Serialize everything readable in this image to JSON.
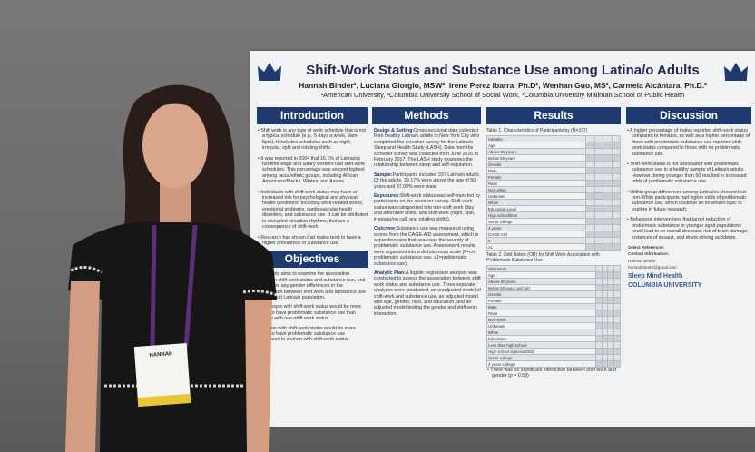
{
  "poster": {
    "title": "Shift-Work Status and Substance Use among Latina/o Adults",
    "authors": "Hannah Binder¹, Luciana Giorgio, MSW², Irene Perez Ibarra, Ph.D², Wenhan Guo, MS³, Carmela Alcántara, Ph.D.²",
    "affiliations": "¹American University, ²Columbia University School of Social Work, ³Columbia University Mailman School of Public Health"
  },
  "introduction": {
    "heading": "Introduction",
    "bullets": [
      "Shift work is any type of work schedule that is not a typical schedule (e.g., 5 days a week, 9am-5pm). It includes schedules such as night, irregular, split and rotating shifts.",
      "It was reported in 2004 that 16.1% of Latina/os full-time wage and salary workers had shift-work schedules. This percentage was second highest among racial/ethnic groups, including African Americans/Blacks, Whites, and Asians.",
      "Individuals with shift-work status may have an increased risk for psychological and physical health conditions, including work-related stress, emotional problems, cardiovascular health disorders, and substance use. It can be attributed to disrupted circadian rhythms, that are a consequence of shift-work.",
      "Research has shown that males tend to have a higher prevalence of substance use."
    ]
  },
  "objectives": {
    "heading": "Objectives",
    "paragraphs": [
      "The study aims to examine the association between shift-work status and substance use, and to explore any gender differences in the association between shift work and substance use in the adult Latina/o population.",
      "H1. People with shift-work status would be more likely to have problematic substance use than people with non-shift work status.",
      "H2. Men with shift-work status would be more likely to have problematic substance use compared to women with shift-work status."
    ]
  },
  "methods": {
    "heading": "Methods",
    "items": [
      {
        "label": "Design & Setting:",
        "text": "Cross-sectional data collected from healthy Latina/o adults in New York City who completed the screener survey for the Latina/o Sleep and Health Study (LASH). Data from the screener survey was collected from June 2016 to February 2017. The LASH study examines the relationship between sleep and self-regulation."
      },
      {
        "label": "Sample:",
        "text": "Participants included 337 Latina/o adults. Of the adults, 39.17% were above the age of 50 years and 37.09% were male."
      },
      {
        "label": "Exposures:",
        "text": "Shift-work status was self-reported by participants on the screener survey. Shift-work status was categorized into non-shift work (day and afternoon shifts) and shift-work (night, split, irregular/on call, and rotating shifts)."
      },
      {
        "label": "Outcome:",
        "text": "Substance use was measured using scores from the CAGE-AID assessment, which is a questionnaire that assesses the severity of problematic substance use. Assessment results were organized into a dichotomous scale (0=no problematic substance use, ≥1=problematic substance use)."
      },
      {
        "label": "Analytic Plan:",
        "text": "A logistic regression analysis was conducted to assess the association between shift work status and substance use. Three separate analyses were conducted, an unadjusted model of shift-work and substance use, an adjusted model with age, gender, race, and education, and an adjusted model testing the gender and shift-work interaction."
      }
    ]
  },
  "results": {
    "heading": "Results",
    "table1": {
      "caption": "Table 1. Characteristics of Participants by (N=337)",
      "rows": [
        "Variable",
        "Age",
        "Above 50 years",
        "Below 50 years",
        "Gender",
        "Male",
        "Female",
        "Race",
        "Non-white",
        "Unknown",
        "White",
        "Education Level",
        "High school/less",
        "Some college",
        "4 years",
        "CAGE-AID",
        "0",
        "≥1"
      ]
    },
    "table2": {
      "caption": "Table 2. Odd Ratios (OR) for Shift Work Association with Problematic Substance Use",
      "rows": [
        "Shift Work",
        "Age",
        "Above 50 years",
        "Below 50 years and old",
        "Gender",
        "Female",
        "Male",
        "Race",
        "Non-white",
        "Unknown",
        "White",
        "Education",
        "Less than high school",
        "High school diploma/GED",
        "Some college",
        "4 years college"
      ]
    },
    "bullets": [
      "There was no significant interaction between shift work and gender (p = 0.58)"
    ]
  },
  "discussion": {
    "heading": "Discussion",
    "bullets": [
      "A higher percentage of males reported shift-work status compared to females, as well as a higher percentage of those with problematic substance use reported shift-work status compared to those with no problematic substance use.",
      "Shift-work status is not associated with problematic substance use in a healthy sample of Latina/o adults. However, being younger than 50 resulted in increased odds of problematic substance use.",
      "Within group differences among Latina/os showed that non-White participants had higher odds of problematic substance use, which could be an important topic to explore in future research.",
      "Behavioral interventions that target reduction of problematic substance in younger aged populations could lead to an overall decrease risk of brain damage, instances of assault, and drunk-driving accidents."
    ],
    "references_heading": "Select References",
    "contact_heading": "Contact Information:",
    "contact": [
      "Hannah Binder",
      "hannahbinder@gmail.com"
    ],
    "logos": [
      "Sleep Mind Health",
      "COLUMBIA UNIVERSITY"
    ]
  },
  "badge": {
    "name": "HANNAH"
  }
}
